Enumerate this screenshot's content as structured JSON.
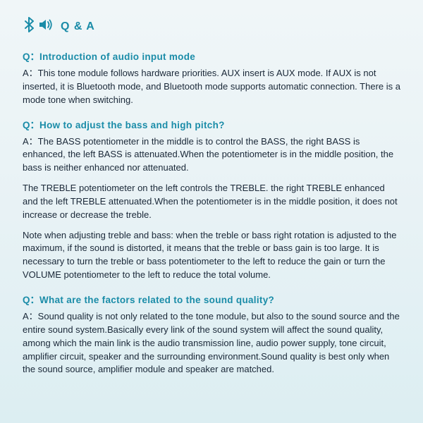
{
  "colors": {
    "teal": "#1a8ca8",
    "text": "#1a2838",
    "bg_top": "#f0f6f8",
    "bg_bottom": "#dceef2"
  },
  "header": {
    "title": "Q & A"
  },
  "qa": [
    {
      "q_label": "Q：",
      "q": "Introduction of audio input mode",
      "a_label": "A：",
      "a": "This tone module follows hardware priorities. AUX insert is AUX mode. If AUX is not inserted, it is Bluetooth mode, and Bluetooth mode supports automatic connection. There is a mode tone when switching.",
      "paras": []
    },
    {
      "q_label": "Q：",
      "q": "How to adjust the bass and high pitch?",
      "a_label": "A：",
      "a": "The BASS potentiometer in the middle is to control the BASS, the right BASS is enhanced, the left BASS is attenuated.When the potentiometer is in the middle position, the bass is neither enhanced nor attenuated.",
      "paras": [
        "The TREBLE potentiometer on the left controls the TREBLE. the right TREBLE enhanced and the left TREBLE attenuated.When the potentiometer is in the middle position, it does not increase or decrease the treble.",
        "Note when adjusting treble and bass: when the treble or bass right rotation is adjusted to the maximum, if the sound is distorted, it means that the treble or bass  gain is too large. It is necessary to turn the treble or bass potentiometer to the left to reduce the gain or turn the VOLUME potentiometer to the left to reduce the total volume."
      ]
    },
    {
      "q_label": "Q：",
      "q": "What are the factors related to the sound quality?",
      "a_label": "A：",
      "a": "Sound quality is not only related to the tone module, but also to the sound source and the entire sound system.Basically every link of the sound system will affect the sound quality, among which the main link is the audio transmission line, audio power supply, tone circuit, amplifier circuit, speaker and the surrounding environment.Sound quality is best only when the sound source, amplifier module and speaker are matched.",
      "paras": []
    }
  ]
}
